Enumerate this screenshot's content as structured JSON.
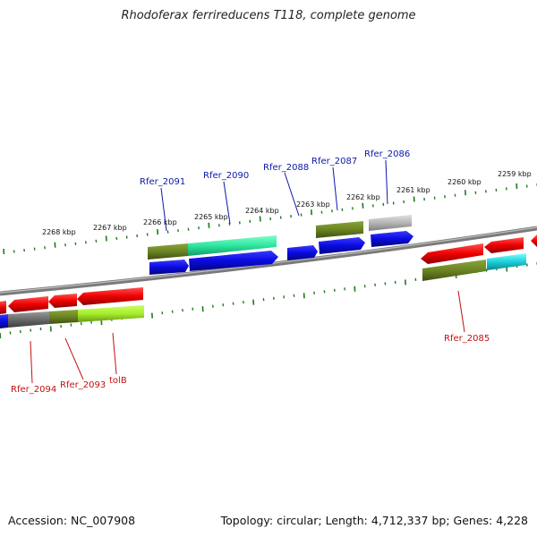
{
  "title": "Rhodoferax ferrireducens T118, complete genome",
  "footer": {
    "accession": "Accession: NC_007908",
    "summary": "Topology: circular; Length: 4,712,337 bp; Genes: 4,228"
  },
  "colors": {
    "backbone": "#7a7a7a",
    "tick": "#1f7a1f",
    "forward_cds": "#0a0ae0",
    "reverse_cds": "#ee0000",
    "label_forward": "#0a18a8",
    "label_reverse": "#c41010"
  },
  "kbp_labels": [
    "2268 kbp",
    "2267 kbp",
    "2266 kbp",
    "2265 kbp",
    "2264 kbp",
    "2263 kbp",
    "2262 kbp",
    "2261 kbp",
    "2260 kbp",
    "2259 kbp"
  ],
  "gene_labels_top": [
    "Rfer_2091",
    "Rfer_2090",
    "Rfer_2088",
    "Rfer_2087",
    "Rfer_2086"
  ],
  "gene_labels_bottom": [
    "Rfer_2094",
    "Rfer_2093",
    "tolB",
    "Rfer_2085"
  ]
}
